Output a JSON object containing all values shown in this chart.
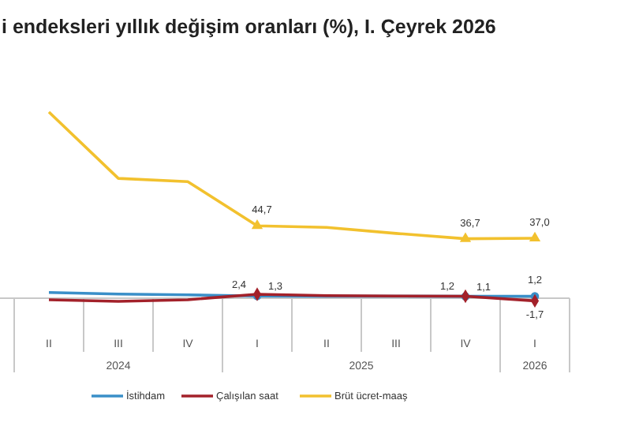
{
  "chart_data": {
    "type": "line",
    "title": "i endeksleri yıllık değişim oranları (%), I. Çeyrek 2026",
    "categories": [
      "II",
      "III",
      "IV",
      "I",
      "II",
      "III",
      "IV",
      "I"
    ],
    "annotations": [
      "2024",
      "2025",
      "2026"
    ],
    "series": [
      {
        "name": "İstihdam",
        "color": "#3a8fc8",
        "values": [
          3.5,
          2.5,
          2,
          1.3,
          1.2,
          1.2,
          1.1,
          1.2
        ],
        "value_labels": [
          null,
          null,
          null,
          "1,3",
          null,
          null,
          "1,1",
          "1,2"
        ]
      },
      {
        "name": "Çalışılan saat",
        "color": "#a3212a",
        "values": [
          -1,
          -2,
          -1,
          2.4,
          1.5,
          1.3,
          1.2,
          -1.7
        ],
        "value_labels": [
          null,
          null,
          null,
          "2,4",
          null,
          null,
          "1,2",
          "-1,7"
        ]
      },
      {
        "name": "Brüt ücret-maaş",
        "color": "#f2c12e",
        "values": [
          115,
          74,
          72,
          44.7,
          43.7,
          40,
          36.7,
          37.0
        ],
        "value_labels": [
          null,
          null,
          null,
          "44,7",
          null,
          null,
          "36,7",
          "37,0"
        ]
      }
    ],
    "legend": "bottom"
  }
}
